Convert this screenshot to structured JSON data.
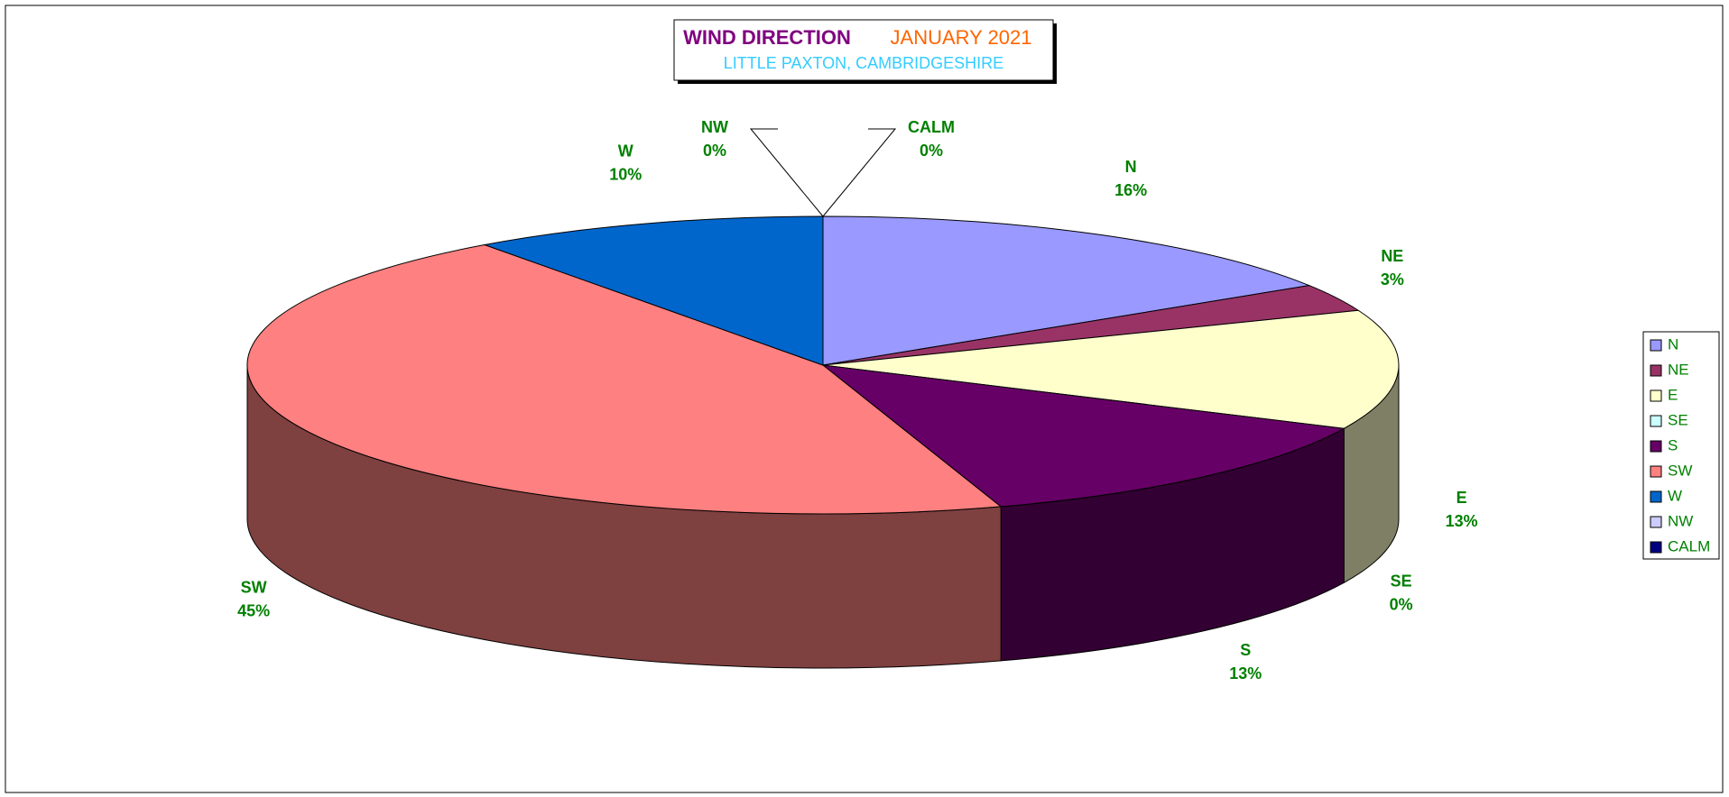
{
  "chart_data": {
    "type": "pie3d",
    "title": "WIND DIRECTION",
    "title_date": "JANUARY 2021",
    "subtitle": "LITTLE PAXTON, CAMBRIDGESHIRE",
    "categories": [
      "N",
      "NE",
      "E",
      "SE",
      "S",
      "SW",
      "W",
      "NW",
      "CALM"
    ],
    "values": [
      16,
      3,
      13,
      0,
      13,
      45,
      10,
      0,
      0
    ],
    "value_labels": [
      "16%",
      "3%",
      "13%",
      "0%",
      "13%",
      "45%",
      "10%",
      "0%",
      "0%"
    ],
    "colors": [
      "#9999ff",
      "#993366",
      "#ffffcc",
      "#ccffff",
      "#660066",
      "#ff8080",
      "#0066cc",
      "#ccccff",
      "#000080"
    ],
    "legend": "right"
  }
}
